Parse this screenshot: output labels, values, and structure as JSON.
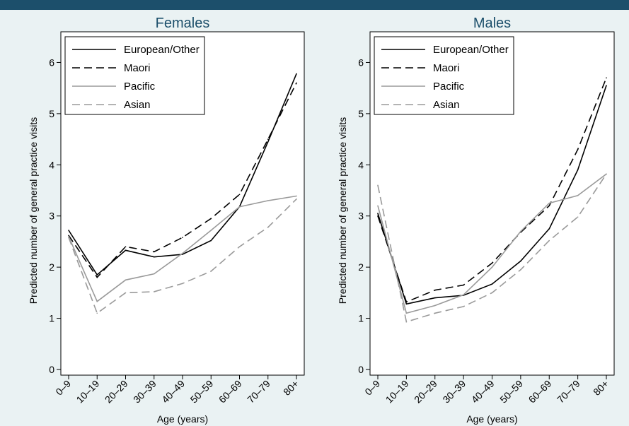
{
  "chart_data": [
    {
      "type": "line",
      "title": "Females",
      "xlabel": "Age (years)",
      "ylabel": "Predicted number of general practice visits",
      "categories": [
        "0–9",
        "10–19",
        "20–29",
        "30–39",
        "40–49",
        "50–59",
        "60–69",
        "70–79",
        "80+"
      ],
      "yticks": [
        "0",
        "1",
        "2",
        "3",
        "4",
        "5",
        "6"
      ],
      "ylim": [
        0,
        6.6
      ],
      "legend_position": "top-left",
      "series": [
        {
          "name": "European/Other",
          "color": "#000000",
          "dash": "solid",
          "values": [
            2.72,
            1.85,
            2.33,
            2.2,
            2.25,
            2.52,
            3.18,
            4.45,
            5.78
          ]
        },
        {
          "name": "Maori",
          "color": "#000000",
          "dash": "dashed",
          "values": [
            2.62,
            1.8,
            2.4,
            2.3,
            2.58,
            2.95,
            3.42,
            4.5,
            5.6
          ]
        },
        {
          "name": "Pacific",
          "color": "#9a9a9a",
          "dash": "solid",
          "values": [
            2.6,
            1.33,
            1.75,
            1.87,
            2.27,
            2.72,
            3.18,
            3.3,
            3.39
          ]
        },
        {
          "name": "Asian",
          "color": "#9a9a9a",
          "dash": "dashed",
          "values": [
            2.58,
            1.1,
            1.5,
            1.52,
            1.68,
            1.92,
            2.4,
            2.78,
            3.33
          ]
        }
      ]
    },
    {
      "type": "line",
      "title": "Males",
      "xlabel": "Age (years)",
      "ylabel": "Predicted number of general practice visits",
      "categories": [
        "0–9",
        "10–19",
        "20–29",
        "30–39",
        "40–49",
        "50–59",
        "60–69",
        "70–79",
        "80+"
      ],
      "yticks": [
        "0",
        "1",
        "2",
        "3",
        "4",
        "5",
        "6"
      ],
      "ylim": [
        0,
        6.6
      ],
      "legend_position": "top-left",
      "series": [
        {
          "name": "European/Other",
          "color": "#000000",
          "dash": "solid",
          "values": [
            3.05,
            1.28,
            1.4,
            1.45,
            1.67,
            2.12,
            2.75,
            3.9,
            5.55
          ]
        },
        {
          "name": "Maori",
          "color": "#000000",
          "dash": "dashed",
          "values": [
            3.0,
            1.32,
            1.55,
            1.65,
            2.08,
            2.68,
            3.2,
            4.3,
            5.7
          ]
        },
        {
          "name": "Pacific",
          "color": "#9a9a9a",
          "dash": "solid",
          "values": [
            3.2,
            1.1,
            1.25,
            1.46,
            2.0,
            2.7,
            3.25,
            3.4,
            3.82
          ]
        },
        {
          "name": "Asian",
          "color": "#9a9a9a",
          "dash": "dashed",
          "values": [
            3.6,
            0.93,
            1.1,
            1.23,
            1.5,
            1.95,
            2.52,
            2.98,
            3.82
          ]
        }
      ]
    }
  ]
}
